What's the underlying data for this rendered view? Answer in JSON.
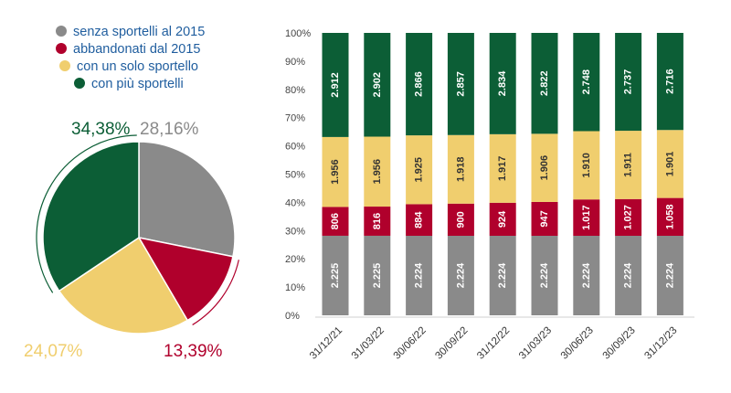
{
  "colors": {
    "senza": "#8a8a8a",
    "abbandonati": "#b0002c",
    "solo": "#f0ce6e",
    "piu": "#0c5e36",
    "legend_text": "#1f5d9e"
  },
  "chart_data": [
    {
      "type": "pie",
      "legend": [
        {
          "name": "senza sportelli al 2015",
          "color_key": "senza"
        },
        {
          "name": "abbandonati dal 2015",
          "color_key": "abbandonati"
        },
        {
          "name": "con un solo sportello",
          "color_key": "solo"
        },
        {
          "name": "con più sportelli",
          "color_key": "piu"
        }
      ],
      "slices": [
        {
          "name": "senza sportelli al 2015",
          "value": 28.16,
          "label": "28,16%",
          "color_key": "senza"
        },
        {
          "name": "abbandonati dal 2015",
          "value": 13.39,
          "label": "13,39%",
          "color_key": "abbandonati"
        },
        {
          "name": "con un solo sportello",
          "value": 24.07,
          "label": "24,07%",
          "color_key": "solo"
        },
        {
          "name": "con più sportelli",
          "value": 34.38,
          "label": "34,38%",
          "color_key": "piu"
        }
      ],
      "legend_placement": "top"
    },
    {
      "type": "bar",
      "stacked": "percent",
      "categories": [
        "31/12/21",
        "31/03/22",
        "30/06/22",
        "30/09/22",
        "31/12/22",
        "31/03/23",
        "30/06/23",
        "30/09/23",
        "31/12/23"
      ],
      "series": [
        {
          "color_key": "senza",
          "values": [
            2225,
            2225,
            2224,
            2224,
            2224,
            2224,
            2224,
            2224,
            2224
          ],
          "labels": [
            "2.225",
            "2.225",
            "2.224",
            "2.224",
            "2.224",
            "2.224",
            "2.224",
            "2.224",
            "2.224"
          ]
        },
        {
          "color_key": "abbandonati",
          "values": [
            806,
            816,
            884,
            900,
            924,
            947,
            1017,
            1027,
            1058
          ],
          "labels": [
            "806",
            "816",
            "884",
            "900",
            "924",
            "947",
            "1.017",
            "1.027",
            "1.058"
          ]
        },
        {
          "color_key": "solo",
          "values": [
            1956,
            1956,
            1925,
            1918,
            1917,
            1906,
            1910,
            1911,
            1901
          ],
          "labels": [
            "1.956",
            "1.956",
            "1.925",
            "1.918",
            "1.917",
            "1.906",
            "1.910",
            "1.911",
            "1.901"
          ]
        },
        {
          "color_key": "piu",
          "values": [
            2912,
            2902,
            2866,
            2857,
            2834,
            2822,
            2748,
            2737,
            2716
          ],
          "labels": [
            "2.912",
            "2.902",
            "2.866",
            "2.857",
            "2.834",
            "2.822",
            "2.748",
            "2.737",
            "2.716"
          ]
        }
      ],
      "y_ticks": [
        "0%",
        "10%",
        "20%",
        "30%",
        "40%",
        "50%",
        "60%",
        "70%",
        "80%",
        "90%",
        "100%"
      ],
      "ylim": [
        0,
        100
      ],
      "grid": false
    }
  ]
}
